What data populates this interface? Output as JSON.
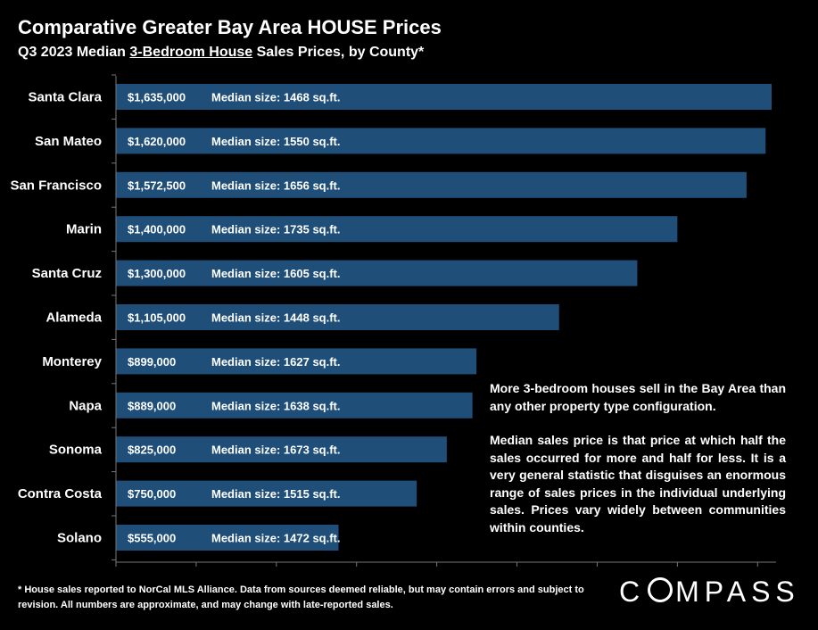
{
  "header": {
    "title": "Comparative Greater Bay Area HOUSE Prices",
    "subtitle_prefix": "Q3 2023 Median ",
    "subtitle_underlined": "3-Bedroom House",
    "subtitle_suffix": " Sales Prices, by County*"
  },
  "chart_data": {
    "type": "bar",
    "orientation": "horizontal",
    "categories": [
      "Santa Clara",
      "San Mateo",
      "San Francisco",
      "Marin",
      "Santa Cruz",
      "Alameda",
      "Monterey",
      "Napa",
      "Sonoma",
      "Contra Costa",
      "Solano"
    ],
    "values": [
      1635000,
      1620000,
      1572500,
      1400000,
      1300000,
      1105000,
      899000,
      889000,
      825000,
      750000,
      555000
    ],
    "value_labels": [
      "$1,635,000",
      "$1,620,000",
      "$1,572,500",
      "$1,400,000",
      "$1,300,000",
      "$1,105,000",
      "$899,000",
      "$889,000",
      "$825,000",
      "$750,000",
      "$555,000"
    ],
    "size_labels": [
      "Median size: 1468 sq.ft.",
      "Median size: 1550 sq.ft.",
      "Median size: 1656 sq.ft.",
      "Median size: 1735 sq.ft.",
      "Median size: 1605 sq.ft.",
      "Median size: 1448 sq.ft.",
      "Median size: 1627 sq.ft.",
      "Median size: 1638 sq.ft.",
      "Median size: 1673 sq.ft.",
      "Median size: 1515 sq.ft.",
      "Median size: 1472 sq.ft."
    ],
    "xlim": [
      0,
      1650000
    ],
    "grid": false,
    "bar_color": "#1f4e79"
  },
  "notes": {
    "p1": "More 3-bedroom houses sell in the Bay Area than any other property type configuration.",
    "p2": "Median sales price is that price at which half the sales occurred for more and half for less. It is a very general statistic that disguises an enormous range of sales prices in the individual underlying sales. Prices vary widely between communities within counties."
  },
  "footnote": "* House sales reported to NorCal MLS Alliance. Data from sources deemed reliable, but may contain errors and subject to revision. All numbers are approximate, and may change with late-reported sales.",
  "logo": {
    "prefix": "C",
    "suffix": "MPASS"
  }
}
